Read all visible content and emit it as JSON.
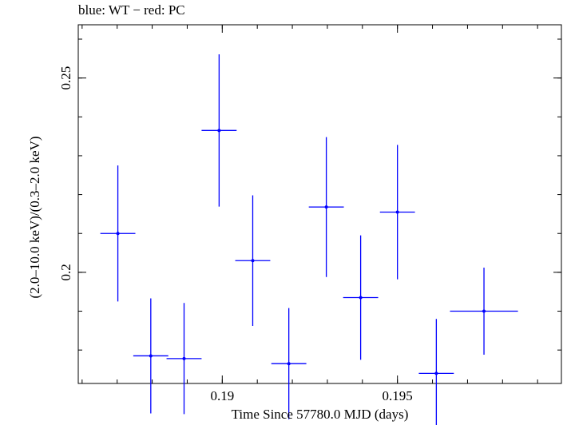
{
  "chart_data": {
    "type": "scatter",
    "title": "blue: WT − red: PC",
    "xlabel": "Time Since 57780.0 MJD (days)",
    "ylabel": "(2.0–10.0 keV)/(0.3–2.0 keV)",
    "xlim": [
      0.18589,
      0.19968
    ],
    "ylim": [
      0.1714,
      0.2637
    ],
    "x_ticks": [
      0.19,
      0.195
    ],
    "x_tick_labels": [
      "0.19",
      "0.195"
    ],
    "y_ticks": [
      0.2,
      0.25
    ],
    "y_tick_labels": [
      "0.2",
      "0.25"
    ],
    "grid": false,
    "series": [
      {
        "color": "#0000ff",
        "points": [
          {
            "x": 0.18702,
            "y": 0.21,
            "xerr": 0.0005,
            "yerr": 0.0175
          },
          {
            "x": 0.18796,
            "y": 0.1785,
            "xerr": 0.0005,
            "yerr": 0.0148
          },
          {
            "x": 0.18891,
            "y": 0.1778,
            "xerr": 0.0005,
            "yerr": 0.0143
          },
          {
            "x": 0.18991,
            "y": 0.2365,
            "xerr": 0.0005,
            "yerr": 0.0196
          },
          {
            "x": 0.19087,
            "y": 0.203,
            "xerr": 0.0005,
            "yerr": 0.0168
          },
          {
            "x": 0.1919,
            "y": 0.1765,
            "xerr": 0.0005,
            "yerr": 0.0143
          },
          {
            "x": 0.19297,
            "y": 0.2168,
            "xerr": 0.0005,
            "yerr": 0.018
          },
          {
            "x": 0.19395,
            "y": 0.1935,
            "xerr": 0.0005,
            "yerr": 0.016
          },
          {
            "x": 0.195,
            "y": 0.2155,
            "xerr": 0.0005,
            "yerr": 0.0173
          },
          {
            "x": 0.19611,
            "y": 0.174,
            "xerr": 0.0005,
            "yerr": 0.014
          },
          {
            "x": 0.19747,
            "y": 0.19,
            "xerr": 0.00097,
            "yerr": 0.0112
          }
        ]
      }
    ]
  }
}
